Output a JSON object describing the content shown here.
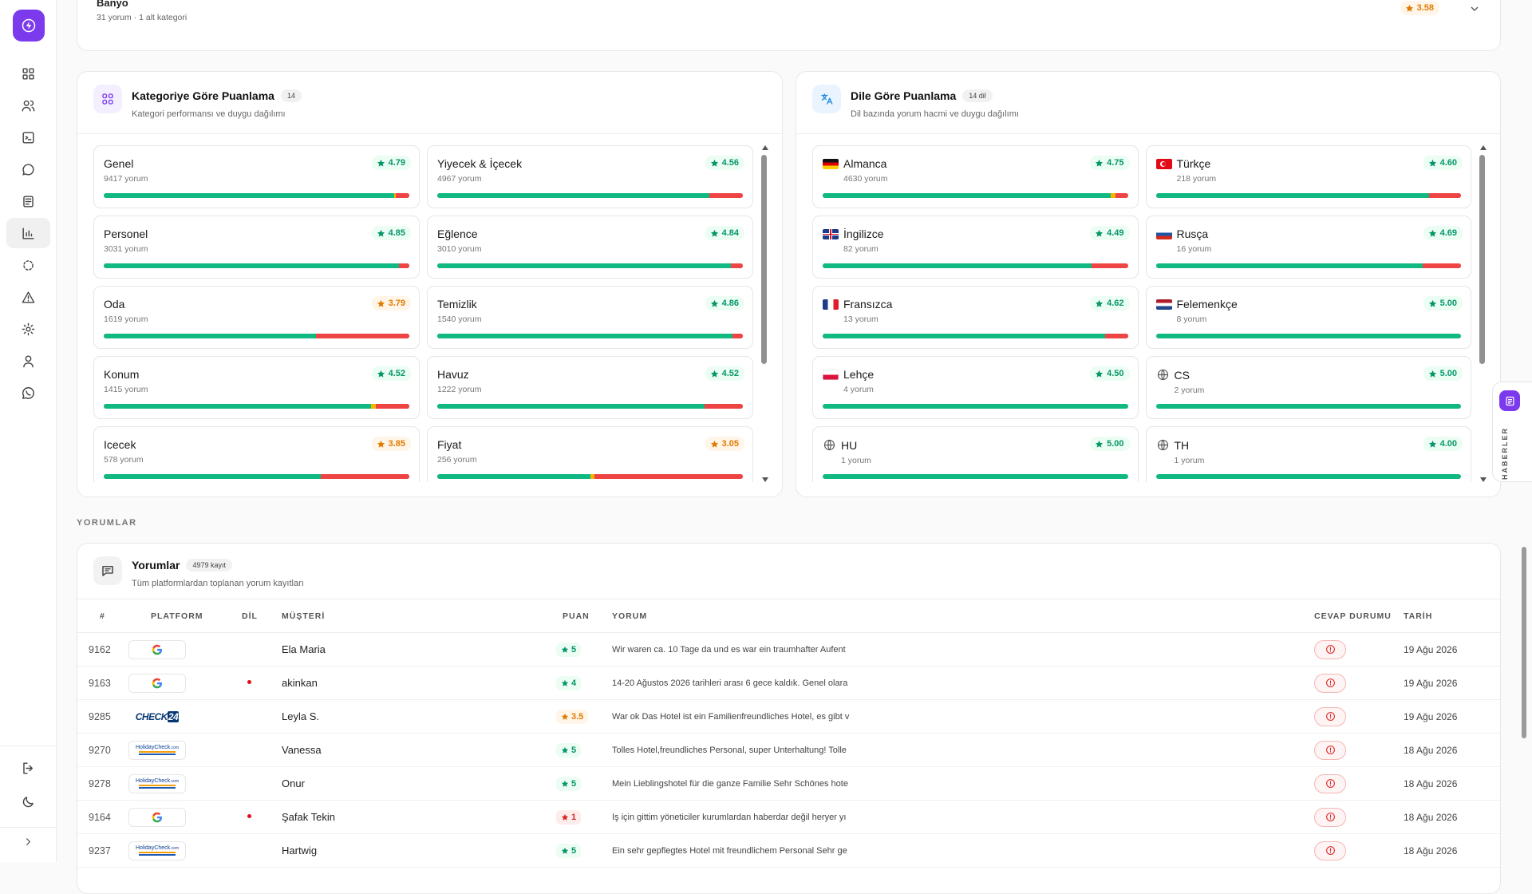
{
  "top_card": {
    "title": "Banyo",
    "subtitle": "31 yorum · 1 alt kategori",
    "score": "3.58"
  },
  "category_panel": {
    "title": "Kategoriye Göre Puanlama",
    "count": "14",
    "subtitle": "Kategori performansı ve duygu dağılımı",
    "items": [
      {
        "name": "Genel",
        "count": "9417 yorum",
        "score": "4.79",
        "tone": "g",
        "sentiment": [
          0.95,
          0.005,
          0.045
        ]
      },
      {
        "name": "Yiyecek & İçecek",
        "count": "4967 yorum",
        "score": "4.56",
        "tone": "g",
        "sentiment": [
          0.89,
          0.0,
          0.11
        ]
      },
      {
        "name": "Personel",
        "count": "3031 yorum",
        "score": "4.85",
        "tone": "g",
        "sentiment": [
          0.965,
          0.0,
          0.035
        ]
      },
      {
        "name": "Eğlence",
        "count": "3010 yorum",
        "score": "4.84",
        "tone": "g",
        "sentiment": [
          0.96,
          0.0,
          0.04
        ]
      },
      {
        "name": "Oda",
        "count": "1619 yorum",
        "score": "3.79",
        "tone": "o",
        "sentiment": [
          0.695,
          0.0,
          0.305
        ]
      },
      {
        "name": "Temizlik",
        "count": "1540 yorum",
        "score": "4.86",
        "tone": "g",
        "sentiment": [
          0.965,
          0.0,
          0.035
        ]
      },
      {
        "name": "Konum",
        "count": "1415 yorum",
        "score": "4.52",
        "tone": "g",
        "sentiment": [
          0.875,
          0.015,
          0.11
        ]
      },
      {
        "name": "Havuz",
        "count": "1222 yorum",
        "score": "4.52",
        "tone": "g",
        "sentiment": [
          0.875,
          0.0,
          0.125
        ]
      },
      {
        "name": "Icecek",
        "count": "578 yorum",
        "score": "3.85",
        "tone": "o",
        "sentiment": [
          0.71,
          0.0,
          0.29
        ]
      },
      {
        "name": "Fiyat",
        "count": "256 yorum",
        "score": "3.05",
        "tone": "o",
        "sentiment": [
          0.5,
          0.015,
          0.485
        ]
      }
    ]
  },
  "language_panel": {
    "title": "Dile Göre Puanlama",
    "count": "14 dil",
    "subtitle": "Dil bazında yorum hacmi ve duygu dağılımı",
    "items": [
      {
        "name": "Almanca",
        "flag": "de",
        "count": "4630 yorum",
        "score": "4.75",
        "tone": "g",
        "sentiment": [
          0.945,
          0.015,
          0.04
        ]
      },
      {
        "name": "Türkçe",
        "flag": "tr",
        "count": "218 yorum",
        "score": "4.60",
        "tone": "g",
        "sentiment": [
          0.895,
          0.0,
          0.105
        ]
      },
      {
        "name": "İngilizce",
        "flag": "gb",
        "count": "82 yorum",
        "score": "4.49",
        "tone": "g",
        "sentiment": [
          0.88,
          0.0,
          0.12
        ]
      },
      {
        "name": "Rusça",
        "flag": "ru",
        "count": "16 yorum",
        "score": "4.69",
        "tone": "g",
        "sentiment": [
          0.875,
          0.0,
          0.125
        ]
      },
      {
        "name": "Fransızca",
        "flag": "fr",
        "count": "13 yorum",
        "score": "4.62",
        "tone": "g",
        "sentiment": [
          0.925,
          0.0,
          0.075
        ]
      },
      {
        "name": "Felemenkçe",
        "flag": "nl",
        "count": "8 yorum",
        "score": "5.00",
        "tone": "g",
        "sentiment": [
          1,
          0,
          0
        ]
      },
      {
        "name": "Lehçe",
        "flag": "pl",
        "count": "4 yorum",
        "score": "4.50",
        "tone": "g",
        "sentiment": [
          1,
          0,
          0
        ]
      },
      {
        "name": "CS",
        "flag": "globe",
        "count": "2 yorum",
        "score": "5.00",
        "tone": "g",
        "sentiment": [
          1,
          0,
          0
        ]
      },
      {
        "name": "HU",
        "flag": "globe",
        "count": "1 yorum",
        "score": "5.00",
        "tone": "g",
        "sentiment": [
          1,
          0,
          0
        ]
      },
      {
        "name": "TH",
        "flag": "globe",
        "count": "1 yorum",
        "score": "4.00",
        "tone": "g",
        "sentiment": [
          1,
          0,
          0
        ]
      }
    ]
  },
  "section_label": "YORUMLAR",
  "reviews": {
    "title": "Yorumlar",
    "count": "4979 kayıt",
    "subtitle": "Tüm platformlardan toplanan yorum kayıtları",
    "columns": [
      "#",
      "PLATFORM",
      "DİL",
      "MÜŞTERİ",
      "PUAN",
      "YORUM",
      "CEVAP DURUMU",
      "TARİH"
    ],
    "rows": [
      {
        "id": "9162",
        "platform": "google",
        "flag": "de",
        "customer": "Ela Maria",
        "score": "5",
        "tone": "g",
        "text": "Wir waren ca. 10 Tage da und es war ein traumhafter Aufent",
        "date": "19 Ağu 2026"
      },
      {
        "id": "9163",
        "platform": "google",
        "flag": "tr",
        "customer": "akinkan",
        "score": "4",
        "tone": "g",
        "text": "14-20 Ağustos 2026 tarihleri arası 6 gece kaldık. Genel olara",
        "date": "19 Ağu 2026"
      },
      {
        "id": "9285",
        "platform": "check24",
        "flag": "de",
        "customer": "Leyla S.",
        "score": "3.5",
        "tone": "o",
        "text": "War ok Das Hotel ist ein Familienfreundliches Hotel, es gibt v",
        "date": "19 Ağu 2026"
      },
      {
        "id": "9270",
        "platform": "holidaycheck",
        "flag": "de",
        "customer": "Vanessa",
        "score": "5",
        "tone": "g",
        "text": "Tolles Hotel,freundliches Personal, super Unterhaltung! Tolle",
        "date": "18 Ağu 2026"
      },
      {
        "id": "9278",
        "platform": "holidaycheck",
        "flag": "de",
        "customer": "Onur",
        "score": "5",
        "tone": "g",
        "text": "Mein Lieblingshotel für die ganze Familie Sehr Schönes hote",
        "date": "18 Ağu 2026"
      },
      {
        "id": "9164",
        "platform": "google",
        "flag": "tr",
        "customer": "Şafak Tekin",
        "score": "1",
        "tone": "r",
        "text": "İş için gittim yöneticiler kurumlardan haberdar değil heryer yı",
        "date": "18 Ağu 2026"
      },
      {
        "id": "9237",
        "platform": "holidaycheck",
        "flag": "de",
        "customer": "Hartwig",
        "score": "5",
        "tone": "g",
        "text": "Ein sehr gepflegtes Hotel mit freundlichem Personal Sehr ge",
        "date": "18 Ağu 2026"
      }
    ]
  },
  "news_tab": {
    "label": "HABERLER"
  },
  "colors": {
    "accent": "#7c3aed",
    "positive": "#10b981",
    "neutral": "#f5b400",
    "negative": "#ef4444"
  },
  "sidebar_icons": [
    "dashboard-icon",
    "users-icon",
    "terminal-icon",
    "chat-icon",
    "newspaper-icon",
    "bar-chart-icon",
    "loader-icon",
    "alert-icon",
    "settings-icon",
    "user-icon",
    "whatsapp-icon"
  ]
}
